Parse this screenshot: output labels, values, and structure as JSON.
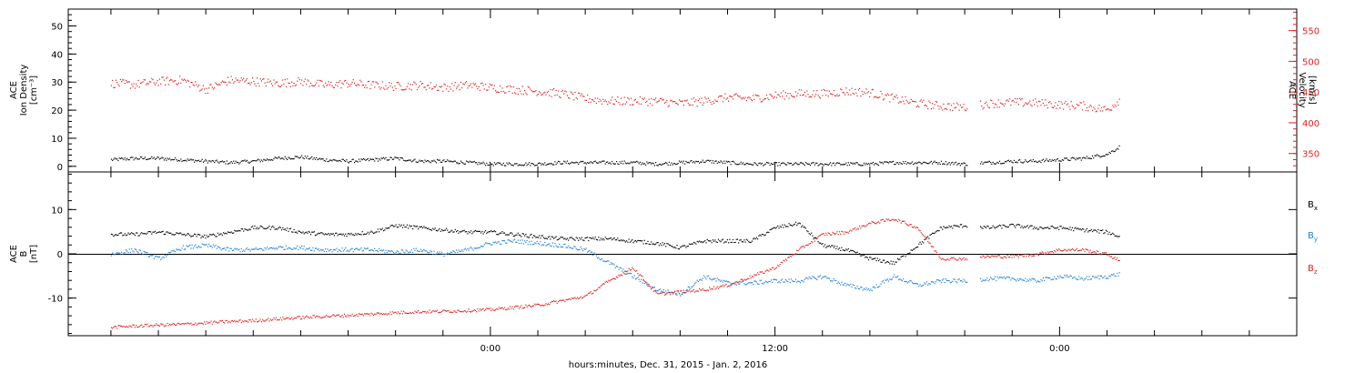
{
  "chart_data": [
    {
      "type": "scatter",
      "panel": "top",
      "ylabel_left": [
        "ACE",
        "Ion Density",
        "[cm⁻³]"
      ],
      "ylabel_right": [
        "ACE",
        "Velocity",
        "[km/s]"
      ],
      "ylim_left": [
        -2,
        56
      ],
      "ylim_right": [
        320,
        585
      ],
      "yticks_left": [
        0,
        10,
        20,
        30,
        40,
        50
      ],
      "yticks_right": [
        350,
        400,
        450,
        500,
        550
      ],
      "series": [
        {
          "axis": "left",
          "color": "#000000",
          "x_hours": [
            -16,
            -15,
            -14,
            -13,
            -12,
            -11,
            -10,
            -9,
            -8,
            -7,
            -6,
            -5,
            -4,
            -3,
            -2,
            -1,
            0,
            1,
            2,
            3,
            4,
            5,
            6,
            7,
            8,
            9,
            10,
            11,
            12,
            13,
            14,
            15,
            16,
            17,
            18,
            19,
            20,
            21,
            22,
            23,
            24,
            25,
            26,
            26.5
          ],
          "values": [
            2.5,
            3,
            3,
            2.5,
            2,
            1.5,
            2,
            3,
            3.5,
            2.5,
            2,
            2.5,
            3,
            2,
            2,
            1.5,
            1,
            1,
            1,
            1.5,
            1.5,
            1.5,
            1.5,
            1,
            1.5,
            2,
            1.5,
            1,
            1,
            1,
            1,
            1,
            1,
            1.5,
            1.5,
            1.5,
            1,
            1.5,
            2,
            2,
            2.5,
            3,
            4.5,
            7
          ]
        },
        {
          "axis": "right",
          "color": "#e02020",
          "x_hours": [
            -16,
            -15,
            -14,
            -13,
            -12,
            -11,
            -10,
            -9,
            -8,
            -7,
            -6,
            -5,
            -4,
            -3,
            -2,
            -1,
            0,
            1,
            2,
            3,
            4,
            5,
            6,
            7,
            8,
            9,
            10,
            11,
            12,
            13,
            14,
            15,
            16,
            17,
            18,
            19,
            20,
            21,
            22,
            23,
            24,
            25,
            26,
            26.5
          ],
          "values": [
            465,
            463,
            468,
            470,
            455,
            470,
            468,
            465,
            468,
            462,
            465,
            462,
            460,
            462,
            458,
            462,
            458,
            455,
            452,
            448,
            440,
            436,
            436,
            436,
            432,
            436,
            442,
            440,
            445,
            448,
            448,
            452,
            450,
            440,
            432,
            428,
            426,
            432,
            434,
            433,
            430,
            428,
            422,
            438
          ]
        }
      ]
    },
    {
      "type": "scatter",
      "panel": "bottom",
      "ylabel_left": [
        "ACE",
        "B",
        "[nT]"
      ],
      "ylim": [
        -18.5,
        18.5
      ],
      "yticks": [
        -10,
        0,
        10
      ],
      "zero_line": true,
      "legend": [
        {
          "text": "B",
          "sub": "x",
          "color": "#000000"
        },
        {
          "text": "B",
          "sub": "y",
          "color": "#1e7fd6"
        },
        {
          "text": "B",
          "sub": "z",
          "color": "#e02020"
        }
      ],
      "series": [
        {
          "name": "Bx",
          "color": "#000000",
          "x_hours": [
            -16,
            -15,
            -14,
            -13,
            -12,
            -11,
            -10,
            -9,
            -8,
            -7,
            -6,
            -5,
            -4,
            -3,
            -2,
            -1,
            0,
            1,
            2,
            3,
            4,
            5,
            6,
            7,
            8,
            9,
            10,
            11,
            12,
            13,
            14,
            15,
            16,
            17,
            18,
            19,
            20,
            21,
            22,
            23,
            24,
            25,
            26,
            26.5
          ],
          "values": [
            4.5,
            4.5,
            5,
            4.5,
            4,
            5,
            6,
            6,
            5,
            4.5,
            4.5,
            5,
            6.5,
            6,
            5.5,
            5,
            5,
            4.5,
            4,
            3.5,
            3.5,
            3.5,
            3,
            2.5,
            1.5,
            3,
            3,
            3,
            6,
            7,
            2,
            1,
            -1,
            -2,
            2,
            6,
            6.5,
            6,
            6.5,
            6,
            6,
            5.5,
            5,
            4
          ]
        },
        {
          "name": "By",
          "color": "#1e7fd6",
          "x_hours": [
            -16,
            -15,
            -14,
            -13,
            -12,
            -11,
            -10,
            -9,
            -8,
            -7,
            -6,
            -5,
            -4,
            -3,
            -2,
            -1,
            0,
            1,
            2,
            3,
            4,
            5,
            6,
            7,
            8,
            9,
            10,
            11,
            12,
            13,
            14,
            15,
            16,
            17,
            18,
            19,
            20,
            21,
            22,
            23,
            24,
            25,
            26,
            26.5
          ],
          "values": [
            0,
            1,
            -1,
            1.5,
            2,
            1,
            1,
            1.5,
            1.5,
            1,
            1,
            1,
            0.5,
            1,
            0,
            1,
            2.5,
            3,
            2.5,
            2,
            1,
            -2,
            -5,
            -8,
            -9,
            -5,
            -6.5,
            -6.5,
            -6,
            -6,
            -5,
            -7,
            -8,
            -5,
            -7,
            -6,
            -6,
            -5.5,
            -5.5,
            -6,
            -5,
            -5.5,
            -5,
            -4.5
          ]
        },
        {
          "name": "Bz",
          "color": "#e02020",
          "x_hours": [
            -16,
            -15,
            -14,
            -13,
            -12,
            -11,
            -10,
            -9,
            -8,
            -7,
            -6,
            -5,
            -4,
            -3,
            -2,
            -1,
            0,
            1,
            2,
            3,
            4,
            5,
            6,
            7,
            8,
            9,
            10,
            11,
            12,
            13,
            14,
            15,
            16,
            17,
            18,
            19,
            20,
            21,
            22,
            23,
            24,
            25,
            26,
            26.5
          ],
          "values": [
            -16.5,
            -16.2,
            -16,
            -15.8,
            -15.5,
            -15.2,
            -15,
            -14.6,
            -14.3,
            -14,
            -13.8,
            -13.5,
            -13.2,
            -13,
            -12.9,
            -12.7,
            -12.5,
            -12,
            -11.5,
            -10.5,
            -9.5,
            -6,
            -3,
            -9,
            -8.5,
            -8,
            -7,
            -5,
            -3,
            1,
            4.5,
            5,
            7,
            8,
            6,
            -1,
            -1,
            -0.5,
            -0.5,
            0,
            1,
            1,
            0,
            -1.5
          ]
        }
      ]
    }
  ],
  "x_axis": {
    "xlabel": "hours:minutes, Dec. 31, 2015 - Jan.  2, 2016",
    "xlim_hours": [
      -17.8,
      34
    ],
    "ticks": [
      {
        "hour": 0,
        "label": "0:00"
      },
      {
        "hour": 12,
        "label": "12:00"
      },
      {
        "hour": 24,
        "label": "0:00"
      }
    ],
    "minor_step_hours": 2
  }
}
